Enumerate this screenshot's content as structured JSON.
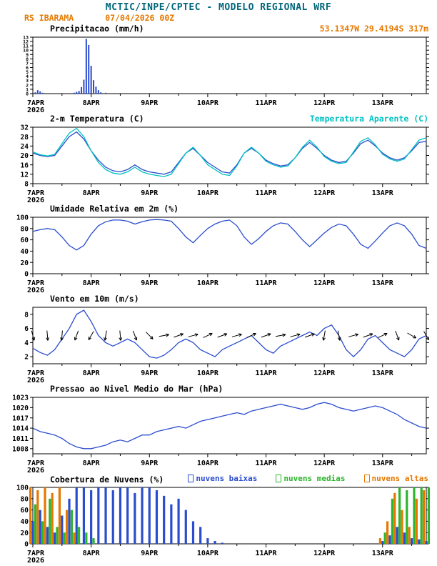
{
  "header": {
    "title": "MCTIC/INPE/CPTEC - MODELO REGIONAL WRF",
    "station": "RS IBARAMA",
    "run": "07/04/2026 00Z",
    "location": "53.1347W 29.4194S 317m"
  },
  "colors": {
    "header_title": "#00667a",
    "orange": "#e67800",
    "blue": "#2a4cce",
    "cyan": "#00c2c2",
    "green": "#2db52d",
    "black": "#000000"
  },
  "x_axis": {
    "domain": [
      0,
      162
    ],
    "step_hours": 3,
    "major_ticks": [
      0,
      24,
      48,
      72,
      96,
      120,
      144
    ],
    "labels": [
      "7APR",
      "8APR",
      "9APR",
      "10APR",
      "11APR",
      "12APR",
      "13APR"
    ],
    "year_label": "2026"
  },
  "chart_data": [
    {
      "type": "bar",
      "title": "Precipitacao (mm/h)",
      "ylim": [
        0,
        13
      ],
      "yticks": [
        0,
        1,
        2,
        3,
        4,
        5,
        6,
        7,
        8,
        9,
        10,
        11,
        12,
        13
      ],
      "series_color": "blue",
      "points": [
        [
          1,
          0.3
        ],
        [
          2,
          0.8
        ],
        [
          3,
          0.5
        ],
        [
          4,
          0.2
        ],
        [
          17,
          0.2
        ],
        [
          18,
          0.4
        ],
        [
          19,
          0.6
        ],
        [
          20,
          1.5
        ],
        [
          21,
          3.2
        ],
        [
          22,
          12.6
        ],
        [
          23,
          11.2
        ],
        [
          24,
          6.4
        ],
        [
          25,
          3.1
        ],
        [
          26,
          1.6
        ],
        [
          27,
          0.8
        ],
        [
          28,
          0.3
        ],
        [
          30,
          0.2
        ]
      ]
    },
    {
      "type": "line",
      "title": "2-m Temperatura (C)",
      "ylim": [
        8,
        32
      ],
      "yticks": [
        8,
        12,
        16,
        20,
        24,
        28,
        32
      ],
      "series": [
        {
          "name": "2-m Temperatura (C)",
          "color": "blue",
          "values": [
            21,
            20,
            19.5,
            20,
            24,
            28,
            30,
            27,
            22,
            18,
            15,
            13.5,
            13,
            14,
            16,
            14,
            13,
            12.5,
            12,
            13,
            17,
            21,
            23,
            20,
            17,
            15,
            13,
            12.5,
            16,
            21,
            23,
            21,
            18,
            16.5,
            15.5,
            16,
            19,
            23,
            25.5,
            23,
            20,
            18,
            17,
            17.5,
            21,
            25,
            26.5,
            24,
            21,
            19,
            18,
            19,
            22,
            25.5,
            26
          ]
        },
        {
          "name": "Temperatura Aparente (C)",
          "color": "cyan",
          "values": [
            21.5,
            20.3,
            19.8,
            20.5,
            25,
            29.5,
            31.5,
            28,
            22,
            17,
            14,
            12.5,
            12,
            13,
            15,
            13,
            12,
            11.5,
            11,
            12,
            16.5,
            21,
            23.5,
            20,
            16,
            14,
            12,
            11.5,
            15.5,
            21,
            23.5,
            21,
            17.5,
            16,
            15,
            15.5,
            19,
            23.5,
            26.5,
            23.5,
            19.5,
            17.5,
            16.5,
            17,
            21.5,
            26,
            27.5,
            24.5,
            20.5,
            18.5,
            17.5,
            18.5,
            22.5,
            26.5,
            27.5
          ]
        }
      ]
    },
    {
      "type": "line",
      "title": "Umidade Relativa em 2m (%)",
      "ylim": [
        0,
        100
      ],
      "yticks": [
        0,
        20,
        40,
        60,
        80,
        100
      ],
      "series": [
        {
          "name": "Umidade Relativa em 2m (%)",
          "color": "blue",
          "values": [
            75,
            78,
            80,
            78,
            65,
            50,
            42,
            50,
            70,
            85,
            92,
            95,
            95,
            93,
            88,
            92,
            95,
            96,
            95,
            93,
            80,
            65,
            55,
            68,
            80,
            88,
            93,
            95,
            85,
            65,
            52,
            62,
            75,
            85,
            90,
            88,
            75,
            60,
            48,
            60,
            72,
            82,
            88,
            85,
            70,
            52,
            45,
            58,
            72,
            85,
            90,
            85,
            70,
            50,
            45
          ]
        }
      ]
    },
    {
      "type": "line_barbs",
      "title": "Vento em 10m (m/s)",
      "ylim": [
        1,
        9
      ],
      "yticks": [
        2,
        4,
        6,
        8
      ],
      "series": [
        {
          "name": "Vento em 10m (m/s)",
          "color": "blue",
          "values": [
            3.2,
            2.6,
            2.2,
            3,
            4.5,
            6,
            8,
            8.6,
            7,
            5,
            4,
            3.5,
            4,
            4.5,
            4,
            3,
            2,
            1.8,
            2.2,
            3,
            4,
            4.5,
            4,
            3,
            2.5,
            2,
            3,
            3.5,
            4,
            4.5,
            5,
            4,
            3,
            2.5,
            3.5,
            4,
            4.5,
            5,
            5.5,
            5,
            6,
            6.5,
            5,
            3,
            2,
            3,
            4.5,
            5,
            4,
            3,
            2.5,
            2,
            3,
            4.5,
            5
          ]
        }
      ],
      "barbs": {
        "y_value": 5,
        "step_hours": 6,
        "angles_deg": [
          -75,
          -85,
          -95,
          -110,
          -120,
          -100,
          -85,
          -70,
          -45,
          10,
          20,
          15,
          25,
          20,
          15,
          25,
          20,
          10,
          15,
          20,
          -100,
          -80,
          15,
          20,
          25,
          -70,
          -30,
          -60
        ]
      }
    },
    {
      "type": "line",
      "title": "Pressao ao Nivel Medio do Mar (hPa)",
      "ylim": [
        1006.5,
        1023
      ],
      "yticks": [
        1008,
        1011,
        1014,
        1017,
        1020,
        1023
      ],
      "series": [
        {
          "name": "Pressao ao Nivel Medio do Mar (hPa)",
          "color": "blue",
          "values": [
            1014,
            1013,
            1012.5,
            1012,
            1011,
            1009.5,
            1008.5,
            1008,
            1008,
            1008.5,
            1009,
            1010,
            1010.5,
            1010,
            1011,
            1012,
            1012,
            1013,
            1013.5,
            1014,
            1014.5,
            1014,
            1015,
            1016,
            1016.5,
            1017,
            1017.5,
            1018,
            1018.5,
            1018,
            1019,
            1019.5,
            1020,
            1020.5,
            1021,
            1020.5,
            1020,
            1019.5,
            1020,
            1021,
            1021.5,
            1021,
            1020,
            1019.5,
            1019,
            1019.5,
            1020,
            1020.5,
            1020,
            1019,
            1018,
            1016.5,
            1015.5,
            1014.5,
            1014
          ]
        }
      ]
    },
    {
      "type": "cloud_bars",
      "title": "Cobertura de Nuvens (%)",
      "ylim": [
        0,
        100
      ],
      "yticks": [
        0,
        20,
        40,
        60,
        80,
        100
      ],
      "series": [
        {
          "name": "nuvens baixas",
          "color": "blue",
          "values": [
            40,
            60,
            30,
            20,
            50,
            80,
            100,
            100,
            95,
            100,
            100,
            95,
            100,
            100,
            90,
            100,
            100,
            95,
            85,
            70,
            80,
            60,
            40,
            30,
            10,
            5,
            2,
            0,
            0,
            0,
            0,
            0,
            0,
            0,
            0,
            0,
            0,
            0,
            0,
            0,
            0,
            0,
            0,
            0,
            0,
            0,
            0,
            0,
            5,
            15,
            30,
            20,
            10,
            8,
            5
          ]
        },
        {
          "name": "nuvens medias",
          "color": "green",
          "values": [
            70,
            40,
            80,
            30,
            20,
            60,
            30,
            20,
            10,
            0,
            0,
            0,
            0,
            0,
            0,
            0,
            0,
            0,
            0,
            0,
            0,
            0,
            0,
            0,
            0,
            0,
            0,
            0,
            0,
            0,
            0,
            0,
            0,
            0,
            0,
            0,
            0,
            0,
            0,
            0,
            0,
            0,
            0,
            0,
            0,
            0,
            0,
            0,
            20,
            80,
            100,
            95,
            100,
            100,
            100
          ]
        },
        {
          "name": "nuvens altas",
          "color": "orange",
          "values": [
            100,
            95,
            100,
            90,
            100,
            60,
            20,
            0,
            0,
            0,
            0,
            0,
            0,
            0,
            0,
            0,
            0,
            0,
            0,
            0,
            0,
            0,
            0,
            0,
            0,
            0,
            0,
            0,
            0,
            0,
            0,
            0,
            0,
            0,
            0,
            0,
            0,
            0,
            0,
            0,
            0,
            0,
            0,
            0,
            0,
            0,
            0,
            0,
            10,
            40,
            90,
            60,
            30,
            80,
            95
          ]
        }
      ]
    }
  ]
}
